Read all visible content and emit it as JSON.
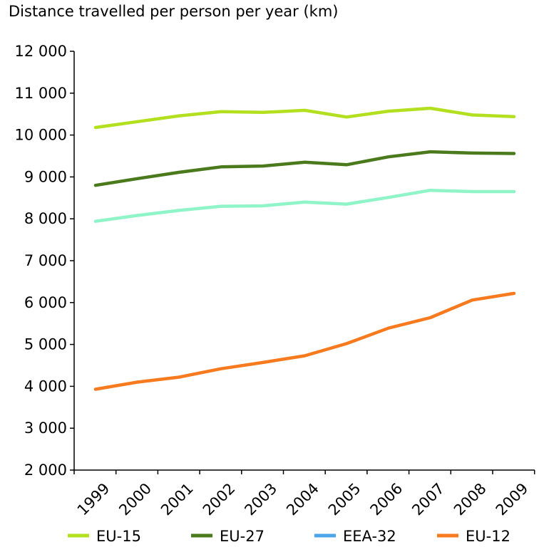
{
  "chart_data": {
    "type": "line",
    "title": "Distance travelled per person per year (km)",
    "xlabel": "",
    "ylabel": "",
    "x": [
      "1999",
      "2000",
      "2001",
      "2002",
      "2003",
      "2004",
      "2005",
      "2006",
      "2007",
      "2008",
      "2009"
    ],
    "ylim": [
      2000,
      12000
    ],
    "yticks": [
      2000,
      3000,
      4000,
      5000,
      6000,
      7000,
      8000,
      9000,
      10000,
      11000,
      12000
    ],
    "ytick_labels": [
      "2 000",
      "3 000",
      "4 000",
      "5 000",
      "6 000",
      "7 000",
      "8 000",
      "9 000",
      "10 000",
      "11 000",
      "12 000"
    ],
    "grid": false,
    "legend_position": "bottom",
    "series": [
      {
        "name": "EU-15",
        "color": "#b2e01f",
        "values": [
          10180,
          10320,
          10460,
          10560,
          10540,
          10590,
          10430,
          10570,
          10640,
          10480,
          10440
        ]
      },
      {
        "name": "EU-27",
        "color": "#4a7a1c",
        "values": [
          8800,
          8960,
          9110,
          9240,
          9260,
          9350,
          9290,
          9480,
          9600,
          9570,
          9560
        ]
      },
      {
        "name": "EEA-32",
        "color": "#4da6e8",
        "values": [
          7940,
          8080,
          8200,
          8300,
          8310,
          8400,
          8350,
          8510,
          8680,
          8650,
          8650
        ],
        "line_color": "#8ff5c8"
      },
      {
        "name": "EU-12",
        "color": "#f77a1e",
        "values": [
          3930,
          4100,
          4220,
          4420,
          4570,
          4730,
          5020,
          5390,
          5640,
          6060,
          6220
        ]
      }
    ]
  }
}
